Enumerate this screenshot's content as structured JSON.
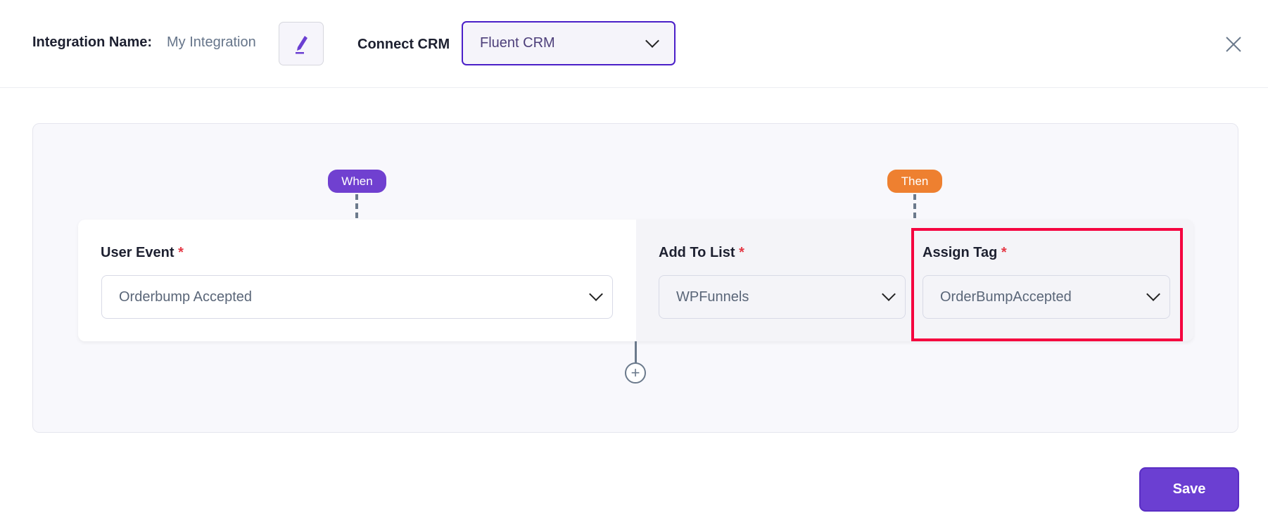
{
  "header": {
    "integration_name_label": "Integration Name:",
    "integration_name_value": "My Integration",
    "connect_crm_label": "Connect CRM",
    "crm_selected": "Fluent CRM"
  },
  "flow": {
    "when_badge": "When",
    "then_badge": "Then",
    "user_event": {
      "label": "User Event",
      "required": "*",
      "value": "Orderbump Accepted"
    },
    "add_to_list": {
      "label": "Add To List",
      "required": "*",
      "value": "WPFunnels"
    },
    "assign_tag": {
      "label": "Assign Tag",
      "required": "*",
      "value": "OrderBumpAccepted"
    }
  },
  "footer": {
    "save_label": "Save"
  },
  "colors": {
    "accent": "#6b3fd2",
    "when": "#7040d0",
    "then": "#ee8030",
    "highlight": "#f5033f"
  }
}
